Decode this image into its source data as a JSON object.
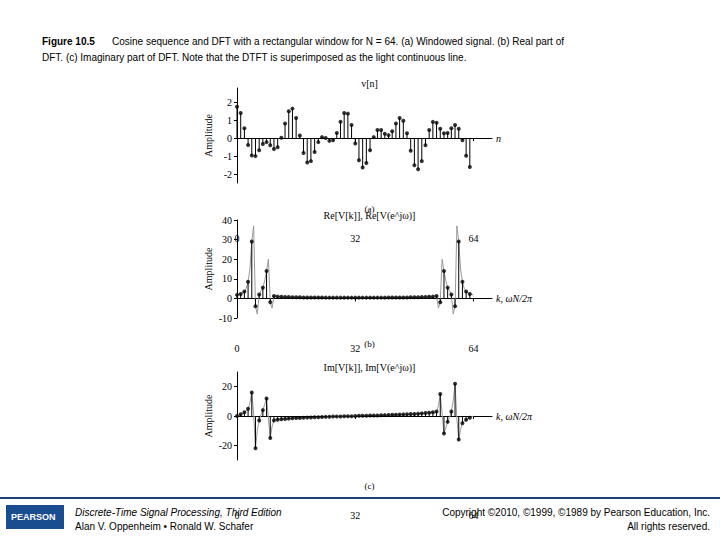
{
  "caption": {
    "label": "Figure 10.5",
    "lines": [
      "Cosine sequence and DFT with a rectangular window for N = 64. (a) Windowed signal. (b) Real part of",
      "DFT. (c) Imaginary part of DFT. Note that the DTFT is superimposed as the light continuous line."
    ]
  },
  "chart_data": [
    {
      "type": "stem",
      "title": "v[n]",
      "y_label": "Amplitude",
      "x_label": "n",
      "panel_label": "(a)",
      "xlim": [
        0,
        69
      ],
      "ylim": [
        -2.5,
        2.8
      ],
      "xticks": [
        0,
        32,
        64
      ],
      "yticks": [
        -2,
        -1,
        0,
        1,
        2
      ],
      "grid": false,
      "series": [
        {
          "type": "stem",
          "color": "#000000",
          "marker": "circle",
          "x": [
            0,
            1,
            2,
            3,
            4,
            5,
            6,
            7,
            8,
            9,
            10,
            11,
            12,
            13,
            14,
            15,
            16,
            17,
            18,
            19,
            20,
            21,
            22,
            23,
            24,
            25,
            26,
            27,
            28,
            29,
            30,
            31,
            32,
            33,
            34,
            35,
            36,
            37,
            38,
            39,
            40,
            41,
            42,
            43,
            44,
            45,
            46,
            47,
            48,
            49,
            50,
            51,
            52,
            53,
            54,
            55,
            56,
            57,
            58,
            59,
            60,
            61,
            62,
            63
          ],
          "values": [
            1.75,
            1.4,
            0.55,
            -0.38,
            -0.96,
            -1.0,
            -0.67,
            -0.32,
            -0.22,
            -0.39,
            -0.6,
            -0.51,
            0.02,
            0.82,
            1.5,
            1.65,
            1.13,
            0.15,
            -0.83,
            -1.36,
            -1.28,
            -0.77,
            -0.22,
            0.06,
            0.01,
            -0.15,
            -0.11,
            0.29,
            0.92,
            1.4,
            1.37,
            0.73,
            -0.3,
            -1.23,
            -1.64,
            -1.38,
            -0.67,
            0.06,
            0.46,
            0.46,
            0.25,
            0.17,
            0.39,
            0.82,
            1.13,
            0.97,
            0.28,
            -0.7,
            -1.51,
            -1.73,
            -1.28,
            -0.39,
            0.46,
            0.91,
            0.86,
            0.53,
            0.27,
            0.29,
            0.55,
            0.73,
            0.53,
            -0.12,
            -0.98,
            -1.61
          ]
        }
      ]
    },
    {
      "type": "stem",
      "title": "Re[V[k]], Re[V(e^jω)]",
      "y_label": "Amplitude",
      "x_label": "k, ωN/2π",
      "panel_label": "(b)",
      "xlim": [
        0,
        69
      ],
      "ylim": [
        -10,
        40
      ],
      "xticks": [
        0,
        32,
        64
      ],
      "yticks": [
        -10,
        0,
        10,
        20,
        30,
        40
      ],
      "grid": false,
      "series": [
        {
          "type": "line",
          "color": "#9a9a9a",
          "line_style": "solid",
          "x": [
            0,
            1,
            2,
            2.5,
            3,
            3.5,
            4,
            4.5,
            5,
            5.5,
            6,
            6.5,
            7,
            7.5,
            8,
            8.5,
            9,
            9.5,
            10,
            10.5,
            11,
            12,
            13,
            14,
            15,
            16,
            17,
            18,
            19,
            20,
            21,
            22,
            23,
            24,
            25,
            26,
            27,
            28,
            29,
            30,
            31,
            32,
            33,
            34,
            35,
            36,
            37,
            38,
            39,
            40,
            41,
            42,
            43,
            44,
            45,
            46,
            47,
            48,
            49,
            50,
            51,
            52,
            53,
            53.5,
            54,
            54.5,
            55,
            55.5,
            56,
            56.5,
            57,
            57.5,
            58,
            58.5,
            59,
            59.5,
            60,
            60.5,
            61,
            61.5,
            62,
            63,
            64
          ],
          "values": [
            1.8,
            2.2,
            3.5,
            5,
            8.5,
            15,
            29,
            37,
            -4,
            -8,
            2,
            4,
            5.5,
            9,
            14,
            20,
            -2,
            -5,
            1.2,
            1.5,
            0.9,
            0.8,
            0.7,
            0.7,
            0.6,
            0.6,
            0.6,
            0.5,
            0.5,
            0.5,
            0.5,
            0.5,
            0.5,
            0.4,
            0.4,
            0.4,
            0.4,
            0.4,
            0.4,
            0.4,
            0.4,
            0.4,
            0.4,
            0.4,
            0.4,
            0.4,
            0.4,
            0.4,
            0.4,
            0.4,
            0.5,
            0.5,
            0.5,
            0.5,
            0.5,
            0.5,
            0.6,
            0.6,
            0.6,
            0.7,
            0.7,
            0.8,
            0.9,
            1.5,
            1.2,
            -5,
            -2,
            20,
            14,
            9,
            5.5,
            4,
            2,
            -8,
            -4,
            37,
            29,
            15,
            8.5,
            5,
            3.5,
            2.2,
            1.8
          ]
        },
        {
          "type": "stem",
          "color": "#000000",
          "marker": "circle",
          "x": [
            0,
            1,
            2,
            3,
            4,
            5,
            6,
            7,
            8,
            9,
            10,
            11,
            12,
            13,
            14,
            15,
            16,
            17,
            18,
            19,
            20,
            21,
            22,
            23,
            24,
            25,
            26,
            27,
            28,
            29,
            30,
            31,
            32,
            33,
            34,
            35,
            36,
            37,
            38,
            39,
            40,
            41,
            42,
            43,
            44,
            45,
            46,
            47,
            48,
            49,
            50,
            51,
            52,
            53,
            54,
            55,
            56,
            57,
            58,
            59,
            60,
            61,
            62,
            63
          ],
          "values": [
            1.8,
            2.2,
            3.5,
            8.5,
            29,
            -4,
            2,
            5.5,
            14,
            -2,
            1.2,
            0.9,
            0.8,
            0.7,
            0.7,
            0.6,
            0.6,
            0.6,
            0.5,
            0.5,
            0.5,
            0.5,
            0.5,
            0.5,
            0.4,
            0.4,
            0.4,
            0.4,
            0.4,
            0.4,
            0.4,
            0.4,
            0.4,
            0.4,
            0.4,
            0.4,
            0.4,
            0.4,
            0.4,
            0.4,
            0.4,
            0.5,
            0.5,
            0.5,
            0.5,
            0.5,
            0.5,
            0.6,
            0.6,
            0.6,
            0.7,
            0.7,
            0.8,
            0.9,
            1.2,
            -2,
            14,
            5.5,
            2,
            -4,
            29,
            8.5,
            3.5,
            2.2
          ]
        }
      ]
    },
    {
      "type": "stem",
      "title": "Im[V[k]], Im[V(e^jω)]",
      "y_label": "Amplitude",
      "x_label": "k, ωN/2π",
      "panel_label": "(c)",
      "xlim": [
        0,
        69
      ],
      "ylim": [
        -30,
        30
      ],
      "xticks": [
        0,
        32,
        64
      ],
      "yticks": [
        -20,
        0,
        20
      ],
      "grid": false,
      "series": [
        {
          "type": "line",
          "color": "#9a9a9a",
          "line_style": "solid",
          "x": [
            0,
            1,
            2,
            2.5,
            3,
            3.5,
            4,
            4.5,
            5,
            5.5,
            6,
            6.5,
            7,
            7.5,
            8,
            8.5,
            9,
            9.5,
            10,
            10.5,
            11,
            12,
            13,
            14,
            15,
            16,
            17,
            18,
            19,
            20,
            21,
            22,
            23,
            24,
            25,
            26,
            27,
            28,
            29,
            30,
            31,
            32,
            33,
            34,
            35,
            36,
            37,
            38,
            39,
            40,
            41,
            42,
            43,
            44,
            45,
            46,
            47,
            48,
            49,
            50,
            51,
            52,
            53,
            53.5,
            54,
            54.5,
            55,
            55.5,
            56,
            56.5,
            57,
            57.5,
            58,
            58.5,
            59,
            59.5,
            60,
            60.5,
            61,
            61.5,
            62,
            63,
            64
          ],
          "values": [
            0,
            1.2,
            2.5,
            3.5,
            5,
            9,
            16,
            2,
            -22,
            -10,
            -3,
            1,
            4,
            8,
            12,
            -2,
            -15,
            -7,
            -3,
            -2,
            -2.5,
            -2.2,
            -2,
            -1.8,
            -1.6,
            -1.4,
            -1.3,
            -1.2,
            -1.1,
            -1,
            -0.9,
            -0.8,
            -0.7,
            -0.6,
            -0.5,
            -0.4,
            -0.35,
            -0.3,
            -0.2,
            -0.15,
            -0.1,
            0,
            0.1,
            0.15,
            0.2,
            0.3,
            0.35,
            0.4,
            0.5,
            0.6,
            0.7,
            0.8,
            0.9,
            1,
            1.1,
            1.2,
            1.3,
            1.4,
            1.6,
            1.8,
            2,
            2.2,
            2.5,
            2,
            3,
            7,
            15,
            2,
            -12,
            -8,
            -4,
            -1,
            3,
            10,
            22,
            -2,
            -16,
            -9,
            -5,
            -3.5,
            -2.5,
            -1.2,
            0
          ]
        },
        {
          "type": "stem",
          "color": "#000000",
          "marker": "circle",
          "x": [
            0,
            1,
            2,
            3,
            4,
            5,
            6,
            7,
            8,
            9,
            10,
            11,
            12,
            13,
            14,
            15,
            16,
            17,
            18,
            19,
            20,
            21,
            22,
            23,
            24,
            25,
            26,
            27,
            28,
            29,
            30,
            31,
            32,
            33,
            34,
            35,
            36,
            37,
            38,
            39,
            40,
            41,
            42,
            43,
            44,
            45,
            46,
            47,
            48,
            49,
            50,
            51,
            52,
            53,
            54,
            55,
            56,
            57,
            58,
            59,
            60,
            61,
            62,
            63
          ],
          "values": [
            0,
            1.2,
            2.5,
            5,
            16,
            -22,
            -3,
            4,
            12,
            -15,
            -3,
            -2.5,
            -2.2,
            -2,
            -1.8,
            -1.6,
            -1.4,
            -1.3,
            -1.2,
            -1.1,
            -1,
            -0.9,
            -0.8,
            -0.7,
            -0.6,
            -0.5,
            -0.4,
            -0.35,
            -0.3,
            -0.2,
            -0.15,
            -0.1,
            0,
            0.1,
            0.15,
            0.2,
            0.3,
            0.35,
            0.4,
            0.5,
            0.6,
            0.7,
            0.8,
            0.9,
            1,
            1.1,
            1.2,
            1.3,
            1.4,
            1.6,
            1.8,
            2,
            2.2,
            2.5,
            3,
            15,
            -12,
            -4,
            3,
            22,
            -16,
            -5,
            -2.5,
            -1.2
          ]
        }
      ]
    }
  ],
  "footer": {
    "logo": "PEARSON",
    "book": "Discrete-Time Signal Processing, Third Edition",
    "authors": "Alan V. Oppenheim • Ronald W. Schafer",
    "copyright": "Copyright ©2010, ©1999, ©1989 by Pearson Education, Inc.",
    "rights": "All rights reserved."
  }
}
